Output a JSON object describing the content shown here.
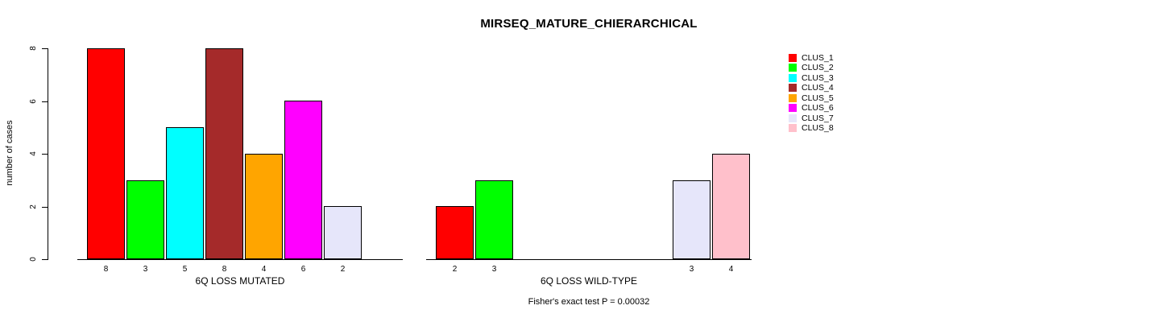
{
  "title": "MIRSEQ_MATURE_CHIERARCHICAL",
  "footer_note": "Fisher's exact test P = 0.00032",
  "y_axis": {
    "label": "number of cases",
    "tick_labels": [
      "0",
      "2",
      "4",
      "6",
      "8"
    ],
    "tick_values": [
      0,
      2,
      4,
      6,
      8
    ]
  },
  "palette": {
    "CLUS_1": "#FF0000",
    "CLUS_2": "#00FF00",
    "CLUS_3": "#00FFFF",
    "CLUS_4": "#A52A2A",
    "CLUS_5": "#FFA500",
    "CLUS_6": "#FF00FF",
    "CLUS_7": "#E6E6FA",
    "CLUS_8": "#FFC0CB"
  },
  "legend": {
    "position": "right",
    "items": [
      {
        "label": "CLUS_1",
        "color": "#FF0000"
      },
      {
        "label": "CLUS_2",
        "color": "#00FF00"
      },
      {
        "label": "CLUS_3",
        "color": "#00FFFF"
      },
      {
        "label": "CLUS_4",
        "color": "#A52A2A"
      },
      {
        "label": "CLUS_5",
        "color": "#FFA500"
      },
      {
        "label": "CLUS_6",
        "color": "#FF00FF"
      },
      {
        "label": "CLUS_7",
        "color": "#E6E6FA"
      },
      {
        "label": "CLUS_8",
        "color": "#FFC0CB"
      }
    ]
  },
  "chart_data": [
    {
      "type": "bar",
      "group": "mutated",
      "xlabel": "6Q LOSS MUTATED",
      "ylabel": "number of cases",
      "ylim": [
        0,
        8
      ],
      "grid": false,
      "categories": [
        "CLUS_1",
        "CLUS_2",
        "CLUS_3",
        "CLUS_4",
        "CLUS_5",
        "CLUS_6",
        "CLUS_7",
        "CLUS_8"
      ],
      "values": [
        8,
        3,
        5,
        8,
        4,
        6,
        2,
        0
      ],
      "bar_labels": [
        "8",
        "3",
        "5",
        "8",
        "4",
        "6",
        "2",
        ""
      ],
      "colors": [
        "#FF0000",
        "#00FF00",
        "#00FFFF",
        "#A52A2A",
        "#FFA500",
        "#FF00FF",
        "#E6E6FA",
        "#FFC0CB"
      ]
    },
    {
      "type": "bar",
      "group": "wild-type",
      "xlabel": "6Q LOSS WILD-TYPE",
      "ylabel": "number of cases",
      "ylim": [
        0,
        8
      ],
      "grid": false,
      "categories": [
        "CLUS_1",
        "CLUS_2",
        "CLUS_3",
        "CLUS_4",
        "CLUS_5",
        "CLUS_6",
        "CLUS_7",
        "CLUS_8"
      ],
      "values": [
        2,
        3,
        0,
        0,
        0,
        0,
        3,
        4
      ],
      "bar_labels": [
        "2",
        "3",
        "",
        "",
        "",
        "",
        "3",
        "4"
      ],
      "colors": [
        "#FF0000",
        "#00FF00",
        "#00FFFF",
        "#A52A2A",
        "#FFA500",
        "#FF00FF",
        "#E6E6FA",
        "#FFC0CB"
      ]
    }
  ]
}
